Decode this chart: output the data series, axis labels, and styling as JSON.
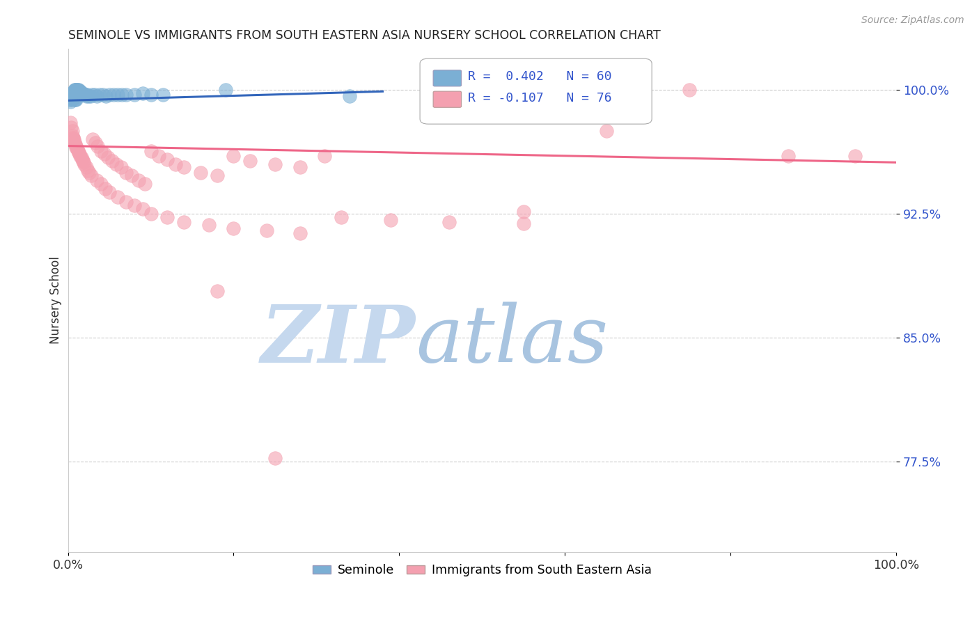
{
  "title": "SEMINOLE VS IMMIGRANTS FROM SOUTH EASTERN ASIA NURSERY SCHOOL CORRELATION CHART",
  "source": "Source: ZipAtlas.com",
  "ylabel": "Nursery School",
  "xlabel": "",
  "xlim": [
    0.0,
    1.0
  ],
  "ylim": [
    0.72,
    1.025
  ],
  "yticks": [
    0.775,
    0.85,
    0.925,
    1.0
  ],
  "ytick_labels": [
    "77.5%",
    "85.0%",
    "92.5%",
    "100.0%"
  ],
  "xticks": [
    0.0,
    0.2,
    0.4,
    0.6,
    0.8,
    1.0
  ],
  "xtick_labels": [
    "0.0%",
    "",
    "",
    "",
    "",
    "100.0%"
  ],
  "r_blue": 0.402,
  "n_blue": 60,
  "r_pink": -0.107,
  "n_pink": 76,
  "blue_color": "#7BAFD4",
  "pink_color": "#F4A0B0",
  "blue_line_color": "#3366BB",
  "pink_line_color": "#EE6688",
  "grid_color": "#CCCCCC",
  "watermark_zip": "ZIP",
  "watermark_atlas": "atlas",
  "watermark_color_zip": "#C8D8F0",
  "watermark_color_atlas": "#A0C0E0",
  "blue_x": [
    0.003,
    0.004,
    0.005,
    0.005,
    0.006,
    0.006,
    0.007,
    0.007,
    0.008,
    0.008,
    0.008,
    0.009,
    0.009,
    0.01,
    0.01,
    0.011,
    0.011,
    0.012,
    0.012,
    0.013,
    0.013,
    0.014,
    0.014,
    0.015,
    0.015,
    0.016,
    0.017,
    0.018,
    0.019,
    0.02,
    0.021,
    0.022,
    0.023,
    0.025,
    0.027,
    0.029,
    0.032,
    0.035,
    0.038,
    0.042,
    0.046,
    0.05,
    0.055,
    0.06,
    0.065,
    0.07,
    0.08,
    0.09,
    0.1,
    0.115,
    0.003,
    0.004,
    0.005,
    0.006,
    0.007,
    0.008,
    0.009,
    0.01,
    0.19,
    0.34
  ],
  "blue_y": [
    0.993,
    0.995,
    0.996,
    0.997,
    0.997,
    0.998,
    0.998,
    0.999,
    0.998,
    0.999,
    1.0,
    1.0,
    1.0,
    1.0,
    1.0,
    1.0,
    1.0,
    1.0,
    0.999,
    1.0,
    0.999,
    0.999,
    0.999,
    0.998,
    0.999,
    0.998,
    0.998,
    0.998,
    0.997,
    0.997,
    0.997,
    0.996,
    0.997,
    0.996,
    0.996,
    0.997,
    0.997,
    0.996,
    0.997,
    0.997,
    0.996,
    0.997,
    0.997,
    0.997,
    0.997,
    0.997,
    0.997,
    0.998,
    0.997,
    0.997,
    0.994,
    0.994,
    0.995,
    0.995,
    0.995,
    0.994,
    0.994,
    0.994,
    1.0,
    0.996
  ],
  "pink_x": [
    0.003,
    0.004,
    0.005,
    0.005,
    0.006,
    0.007,
    0.007,
    0.008,
    0.009,
    0.01,
    0.01,
    0.011,
    0.012,
    0.013,
    0.014,
    0.015,
    0.016,
    0.017,
    0.018,
    0.019,
    0.02,
    0.022,
    0.024,
    0.026,
    0.028,
    0.03,
    0.033,
    0.036,
    0.04,
    0.044,
    0.048,
    0.053,
    0.058,
    0.064,
    0.07,
    0.077,
    0.085,
    0.093,
    0.1,
    0.11,
    0.12,
    0.13,
    0.14,
    0.16,
    0.18,
    0.2,
    0.22,
    0.25,
    0.28,
    0.31,
    0.035,
    0.04,
    0.045,
    0.05,
    0.06,
    0.07,
    0.08,
    0.09,
    0.1,
    0.12,
    0.14,
    0.17,
    0.2,
    0.24,
    0.28,
    0.33,
    0.39,
    0.46,
    0.55,
    0.65,
    0.75,
    0.87,
    0.95,
    0.55,
    0.18,
    0.25
  ],
  "pink_y": [
    0.98,
    0.977,
    0.975,
    0.972,
    0.971,
    0.97,
    0.969,
    0.968,
    0.967,
    0.966,
    0.965,
    0.964,
    0.963,
    0.962,
    0.961,
    0.96,
    0.959,
    0.958,
    0.957,
    0.956,
    0.955,
    0.953,
    0.951,
    0.95,
    0.948,
    0.97,
    0.968,
    0.966,
    0.963,
    0.961,
    0.959,
    0.957,
    0.955,
    0.953,
    0.95,
    0.948,
    0.945,
    0.943,
    0.963,
    0.96,
    0.958,
    0.955,
    0.953,
    0.95,
    0.948,
    0.96,
    0.957,
    0.955,
    0.953,
    0.96,
    0.945,
    0.943,
    0.94,
    0.938,
    0.935,
    0.932,
    0.93,
    0.928,
    0.925,
    0.923,
    0.92,
    0.918,
    0.916,
    0.915,
    0.913,
    0.923,
    0.921,
    0.92,
    0.919,
    0.975,
    1.0,
    0.96,
    0.96,
    0.926,
    0.878,
    0.777
  ]
}
